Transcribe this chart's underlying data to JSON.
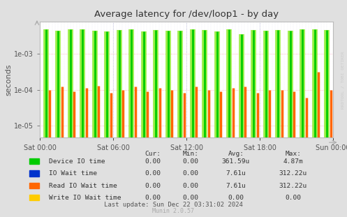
{
  "title": "Average latency for /dev/loop1 - by day",
  "ylabel": "seconds",
  "background_color": "#e0e0e0",
  "plot_bg_color": "#ffffff",
  "grid_color_dotted": "#cccccc",
  "grid_color_red": "#ffaaaa",
  "xtick_labels": [
    "Sat 00:00",
    "Sat 06:00",
    "Sat 12:00",
    "Sat 18:00",
    "Sun 00:00"
  ],
  "ytick_values": [
    1e-05,
    0.0001,
    0.001
  ],
  "ytick_labels": [
    "1e-05",
    "1e-04",
    "1e-03"
  ],
  "ymin": 4.5e-06,
  "ymax": 0.008,
  "legend": [
    {
      "label": "Device IO time",
      "color": "#00cc00"
    },
    {
      "label": "IO Wait time",
      "color": "#0033cc"
    },
    {
      "label": "Read IO Wait time",
      "color": "#ff6600"
    },
    {
      "label": "Write IO Wait time",
      "color": "#ffcc00"
    }
  ],
  "legend_table_headers": [
    "Cur:",
    "Min:",
    "Avg:",
    "Max:"
  ],
  "legend_table_rows": [
    [
      "0.00",
      "0.00",
      "361.59u",
      "4.87m"
    ],
    [
      "0.00",
      "0.00",
      "7.61u",
      "312.22u"
    ],
    [
      "0.00",
      "0.00",
      "7.61u",
      "312.22u"
    ],
    [
      "0.00",
      "0.00",
      "0.00",
      "0.00"
    ]
  ],
  "footer": "Last update: Sun Dec 22 03:31:02 2024",
  "watermark": "Munin 2.0.57",
  "rrdtool_text": "RRDTOOL / TOBI OETIKER",
  "num_spike_groups": 24,
  "spike_heights_green": [
    0.0048,
    0.0045,
    0.005,
    0.0048,
    0.0044,
    0.0042,
    0.0046,
    0.005,
    0.0043,
    0.0047,
    0.0045,
    0.0044,
    0.005,
    0.0046,
    0.0043,
    0.0048,
    0.0035,
    0.0047,
    0.0045,
    0.0046,
    0.0044,
    0.005,
    0.0048,
    0.0046
  ],
  "spike_heights_orange": [
    0.0001,
    0.00012,
    9e-05,
    0.00011,
    0.00013,
    8e-05,
    0.0001,
    0.00012,
    9e-05,
    0.00011,
    0.0001,
    8e-05,
    0.00012,
    0.0001,
    9e-05,
    0.00011,
    0.00012,
    8e-05,
    0.0001,
    0.0001,
    9e-05,
    6e-05,
    0.00032,
    0.0001
  ]
}
